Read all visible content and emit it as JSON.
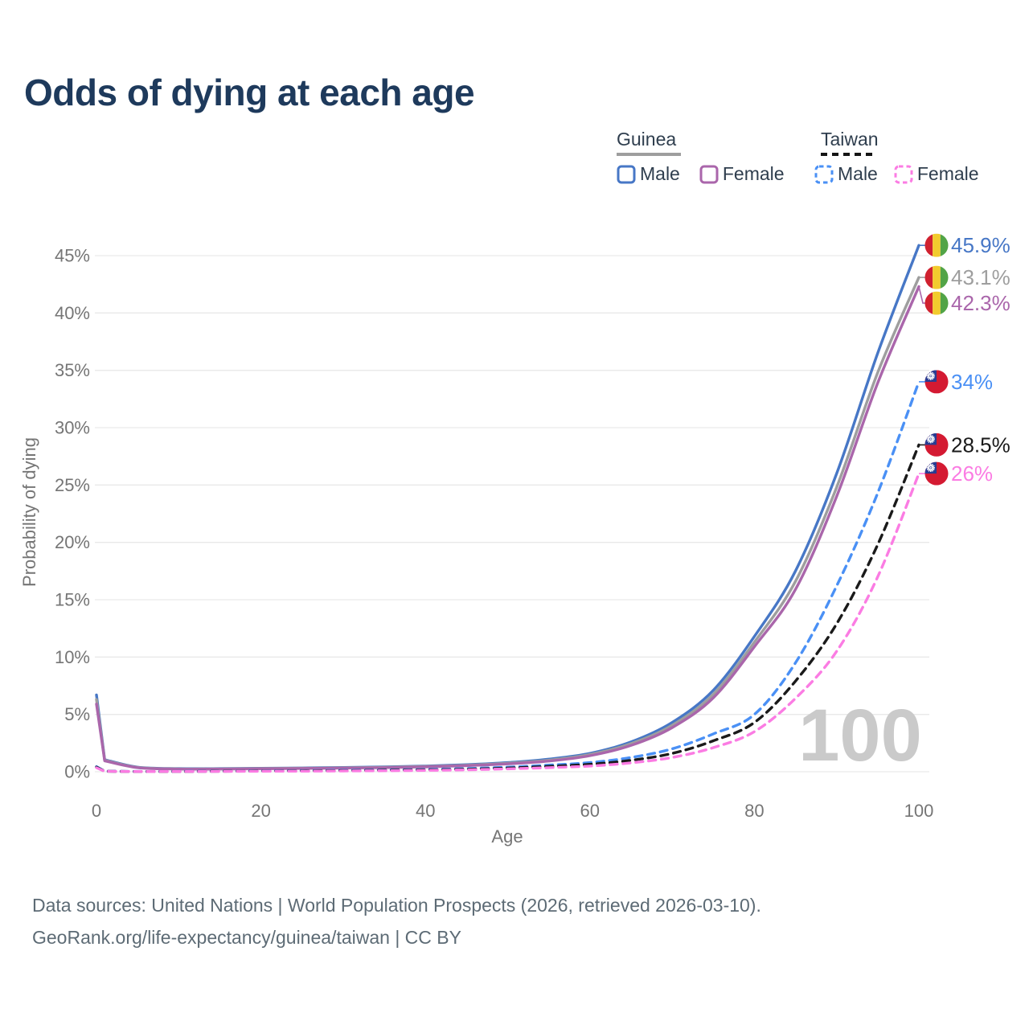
{
  "title": "Odds of dying at each age",
  "legend": {
    "groups": [
      {
        "label": "Guinea",
        "line_style": "solid",
        "underline_color": "#9e9e9e",
        "items": [
          {
            "label": "Male",
            "color": "#4777c6"
          },
          {
            "label": "Female",
            "color": "#aa66ab"
          }
        ]
      },
      {
        "label": "Taiwan",
        "line_style": "dashed",
        "underline_color": "#151515",
        "items": [
          {
            "label": "Male",
            "color": "#4a90f5"
          },
          {
            "label": "Female",
            "color": "#fb7ce3"
          }
        ]
      }
    ]
  },
  "axes": {
    "x": {
      "label": "Age",
      "ticks": [
        {
          "v": 0,
          "label": "0"
        },
        {
          "v": 20,
          "label": "20"
        },
        {
          "v": 40,
          "label": "40"
        },
        {
          "v": 60,
          "label": "60"
        },
        {
          "v": 80,
          "label": "80"
        },
        {
          "v": 100,
          "label": "100"
        }
      ]
    },
    "y": {
      "label": "Probability of dying",
      "ticks": [
        {
          "v": 0,
          "label": "0%"
        },
        {
          "v": 5,
          "label": "5%"
        },
        {
          "v": 10,
          "label": "10%"
        },
        {
          "v": 15,
          "label": "15%"
        },
        {
          "v": 20,
          "label": "20%"
        },
        {
          "v": 25,
          "label": "25%"
        },
        {
          "v": 30,
          "label": "30%"
        },
        {
          "v": 35,
          "label": "35%"
        },
        {
          "v": 40,
          "label": "40%"
        },
        {
          "v": 45,
          "label": "45%"
        }
      ]
    }
  },
  "watermark": "100",
  "footer": {
    "line1": "Data sources: United Nations | World Population Prospects (2026, retrieved 2026-03-10).",
    "line2": "GeoRank.org/life-expectancy/guinea/taiwan | CC BY"
  },
  "chart_data": {
    "type": "line",
    "title": "Odds of dying at each age",
    "xlabel": "Age",
    "ylabel": "Probability of dying",
    "x_range": [
      0,
      100
    ],
    "y_range_pct": [
      0,
      46
    ],
    "grid": "horizontal",
    "grid_color": "#e9e9e9",
    "tick_color": "#757575",
    "watermark_color": "#cacaca",
    "series": [
      {
        "name": "Guinea Male",
        "country": "Guinea",
        "sex": "Male",
        "color": "#4777c6",
        "dashed": false,
        "flag": "guinea",
        "end_label": "45.9%",
        "points": [
          [
            0,
            6.7
          ],
          [
            1,
            1.05
          ],
          [
            5,
            0.4
          ],
          [
            10,
            0.27
          ],
          [
            15,
            0.27
          ],
          [
            20,
            0.3
          ],
          [
            25,
            0.33
          ],
          [
            30,
            0.37
          ],
          [
            35,
            0.42
          ],
          [
            40,
            0.5
          ],
          [
            45,
            0.62
          ],
          [
            50,
            0.8
          ],
          [
            55,
            1.1
          ],
          [
            60,
            1.6
          ],
          [
            65,
            2.6
          ],
          [
            70,
            4.3
          ],
          [
            75,
            7.1
          ],
          [
            80,
            11.8
          ],
          [
            85,
            17.5
          ],
          [
            90,
            26.0
          ],
          [
            95,
            36.5
          ],
          [
            100,
            45.9
          ]
        ]
      },
      {
        "name": "Guinea Both sexes",
        "country": "Guinea",
        "sex": "Both",
        "color": "#9e9e9e",
        "dashed": false,
        "flag": "guinea",
        "end_label": "43.1%",
        "points": [
          [
            0,
            6.3
          ],
          [
            1,
            1.0
          ],
          [
            5,
            0.38
          ],
          [
            10,
            0.25
          ],
          [
            15,
            0.25
          ],
          [
            20,
            0.28
          ],
          [
            25,
            0.31
          ],
          [
            30,
            0.34
          ],
          [
            35,
            0.39
          ],
          [
            40,
            0.46
          ],
          [
            45,
            0.57
          ],
          [
            50,
            0.74
          ],
          [
            55,
            1.0
          ],
          [
            60,
            1.5
          ],
          [
            65,
            2.45
          ],
          [
            70,
            4.05
          ],
          [
            75,
            6.75
          ],
          [
            80,
            11.3
          ],
          [
            85,
            16.6
          ],
          [
            90,
            24.8
          ],
          [
            95,
            34.8
          ],
          [
            100,
            43.1
          ]
        ]
      },
      {
        "name": "Guinea Female",
        "country": "Guinea",
        "sex": "Female",
        "color": "#aa66ab",
        "dashed": false,
        "flag": "guinea",
        "end_label": "42.3%",
        "points": [
          [
            0,
            5.9
          ],
          [
            1,
            0.95
          ],
          [
            5,
            0.36
          ],
          [
            10,
            0.23
          ],
          [
            15,
            0.23
          ],
          [
            20,
            0.26
          ],
          [
            25,
            0.29
          ],
          [
            30,
            0.32
          ],
          [
            35,
            0.36
          ],
          [
            40,
            0.43
          ],
          [
            45,
            0.53
          ],
          [
            50,
            0.69
          ],
          [
            55,
            0.93
          ],
          [
            60,
            1.4
          ],
          [
            65,
            2.3
          ],
          [
            70,
            3.85
          ],
          [
            75,
            6.45
          ],
          [
            80,
            10.9
          ],
          [
            85,
            15.9
          ],
          [
            90,
            24.0
          ],
          [
            95,
            33.9
          ],
          [
            100,
            42.3
          ]
        ]
      },
      {
        "name": "Taiwan Male",
        "country": "Taiwan",
        "sex": "Male",
        "color": "#4a90f5",
        "dashed": true,
        "flag": "taiwan",
        "end_label": "34%",
        "points": [
          [
            0,
            0.45
          ],
          [
            1,
            0.05
          ],
          [
            5,
            0.03
          ],
          [
            10,
            0.03
          ],
          [
            15,
            0.05
          ],
          [
            20,
            0.08
          ],
          [
            25,
            0.1
          ],
          [
            30,
            0.13
          ],
          [
            35,
            0.16
          ],
          [
            40,
            0.2
          ],
          [
            45,
            0.28
          ],
          [
            50,
            0.4
          ],
          [
            55,
            0.58
          ],
          [
            60,
            0.8
          ],
          [
            65,
            1.25
          ],
          [
            70,
            2.0
          ],
          [
            75,
            3.3
          ],
          [
            80,
            5.0
          ],
          [
            85,
            9.5
          ],
          [
            90,
            16.2
          ],
          [
            95,
            24.3
          ],
          [
            100,
            34.0
          ]
        ]
      },
      {
        "name": "Taiwan Both sexes",
        "country": "Taiwan",
        "sex": "Both",
        "color": "#1a1a1a",
        "dashed": true,
        "flag": "taiwan",
        "end_label": "28.5%",
        "points": [
          [
            0,
            0.4
          ],
          [
            1,
            0.04
          ],
          [
            5,
            0.02
          ],
          [
            10,
            0.02
          ],
          [
            15,
            0.04
          ],
          [
            20,
            0.06
          ],
          [
            25,
            0.08
          ],
          [
            30,
            0.1
          ],
          [
            35,
            0.13
          ],
          [
            40,
            0.16
          ],
          [
            45,
            0.22
          ],
          [
            50,
            0.32
          ],
          [
            55,
            0.47
          ],
          [
            60,
            0.65
          ],
          [
            65,
            1.0
          ],
          [
            70,
            1.6
          ],
          [
            75,
            2.7
          ],
          [
            80,
            4.3
          ],
          [
            85,
            7.9
          ],
          [
            90,
            12.9
          ],
          [
            95,
            19.8
          ],
          [
            100,
            28.5
          ]
        ]
      },
      {
        "name": "Taiwan Female",
        "country": "Taiwan",
        "sex": "Female",
        "color": "#fb7ce3",
        "dashed": true,
        "flag": "taiwan",
        "end_label": "26%",
        "points": [
          [
            0,
            0.35
          ],
          [
            1,
            0.04
          ],
          [
            5,
            0.02
          ],
          [
            10,
            0.02
          ],
          [
            15,
            0.03
          ],
          [
            20,
            0.04
          ],
          [
            25,
            0.05
          ],
          [
            30,
            0.07
          ],
          [
            35,
            0.09
          ],
          [
            40,
            0.12
          ],
          [
            45,
            0.17
          ],
          [
            50,
            0.25
          ],
          [
            55,
            0.36
          ],
          [
            60,
            0.5
          ],
          [
            65,
            0.78
          ],
          [
            70,
            1.25
          ],
          [
            75,
            2.1
          ],
          [
            80,
            3.5
          ],
          [
            85,
            6.4
          ],
          [
            90,
            10.5
          ],
          [
            95,
            17.0
          ],
          [
            100,
            26.0
          ]
        ]
      }
    ],
    "flag_colors": {
      "guinea": {
        "red": "#d0212f",
        "yellow": "#f2cb2e",
        "green": "#52a447"
      },
      "taiwan": {
        "red": "#d41a32",
        "blue": "#283c92",
        "sun": "#ffffff"
      }
    }
  }
}
